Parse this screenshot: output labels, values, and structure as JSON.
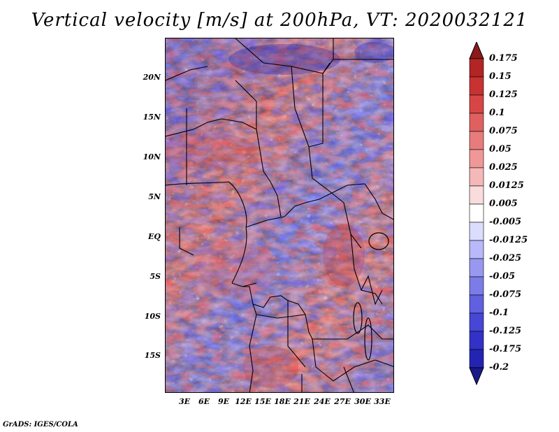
{
  "title": "Vertical velocity [m/s] at 200hPa, VT: 2020032121",
  "credit": "GrADS: IGES/COLA",
  "lat_labels": [
    "20N",
    "15N",
    "10N",
    "5N",
    "EQ",
    "5S",
    "10S",
    "15S"
  ],
  "lon_labels": [
    "3E",
    "6E",
    "9E",
    "12E",
    "15E",
    "18E",
    "21E",
    "24E",
    "27E",
    "30E",
    "33E"
  ],
  "colorbar": {
    "levels": [
      "0.175",
      "0.15",
      "0.125",
      "0.1",
      "0.075",
      "0.05",
      "0.025",
      "0.0125",
      "0.005",
      "-0.005",
      "-0.0125",
      "-0.025",
      "-0.05",
      "-0.075",
      "-0.1",
      "-0.125",
      "-0.175",
      "-0.2"
    ],
    "colors": [
      "#8b1a1a",
      "#b32424",
      "#c83232",
      "#d74646",
      "#e06060",
      "#e87c7c",
      "#f09898",
      "#f5b8b8",
      "#fadcdc",
      "#ffffff",
      "#dcdcff",
      "#b8b8fa",
      "#9898f0",
      "#7c7ce8",
      "#6060e0",
      "#4646d7",
      "#3232c8",
      "#2424b3",
      "#1a1a8b"
    ]
  },
  "map": {
    "region": "Central and Southern Africa",
    "lon_range": [
      0,
      35
    ],
    "lat_range": [
      -20.5,
      24.5
    ],
    "field": "Vertical velocity",
    "level": "200hPa"
  }
}
